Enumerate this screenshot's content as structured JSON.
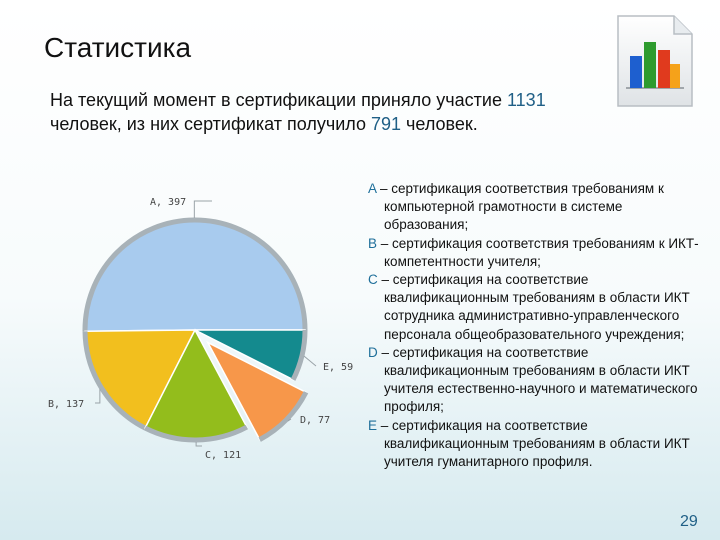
{
  "slide": {
    "title": "Статистика",
    "intro_part1": "На текущий момент в сертификации приняло участие ",
    "intro_num1": "1131",
    "intro_part2": " человек, из них сертификат получило ",
    "intro_num2": "791",
    "intro_part3": " человек.",
    "page_number": "29",
    "icon": "document-bar-chart-icon"
  },
  "legend": [
    {
      "letter": "A",
      "text": " – сертификация соответствия требованиям к компьютерной грамотности в системе образования;"
    },
    {
      "letter": "B",
      "text": " – сертификация соответствия требованиям к ИКТ-компетентности учителя;"
    },
    {
      "letter": "C",
      "text": " – сертификация на соответствие квалификационным требованиям в области ИКТ сотрудника административно-управленческого персонала общеобразовательного учреждения;"
    },
    {
      "letter": "D",
      "text": " – сертификация на соответствие квалификационным требованиям в области ИКТ учителя естественно-научного и математического профиля;"
    },
    {
      "letter": "E",
      "text": " – сертификация на соответствие квалификационным требованиям в области ИКТ учителя гуманитарного профиля."
    }
  ],
  "chart_data": {
    "type": "pie",
    "categories": [
      "A",
      "B",
      "C",
      "D",
      "E"
    ],
    "values": [
      397,
      137,
      121,
      77,
      59
    ],
    "labels": [
      "A, 397",
      "B, 137",
      "C, 121",
      "D, 77",
      "E, 59"
    ],
    "colors": [
      "#a8cbee",
      "#f2bf1e",
      "#93bd1c",
      "#f7974a",
      "#148a8e"
    ],
    "exploded": [
      "D"
    ]
  }
}
